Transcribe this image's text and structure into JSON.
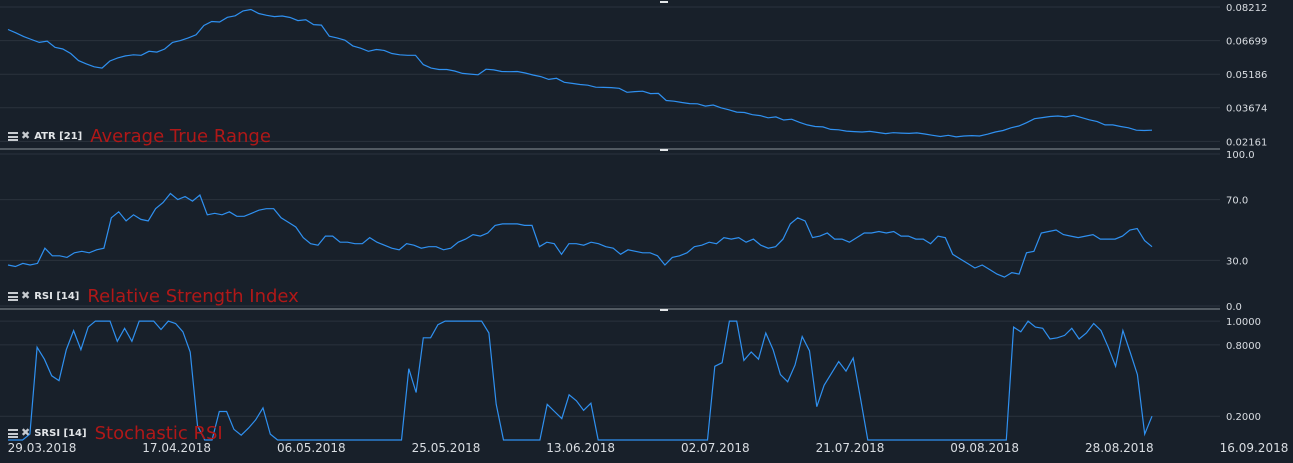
{
  "chart_data": [
    {
      "type": "line",
      "indicator": "ATR [21]",
      "name": "Average True Range",
      "ylim": [
        0.0195,
        0.0835
      ],
      "y_ticks": [
        "0.08212",
        "0.06699",
        "0.05186",
        "0.03674",
        "0.02161"
      ],
      "y_tick_values": [
        0.08212,
        0.06699,
        0.05186,
        0.03674,
        0.02161
      ],
      "values": [
        0.072,
        0.0705,
        0.0688,
        0.0675,
        0.0662,
        0.0668,
        0.064,
        0.0632,
        0.0612,
        0.058,
        0.0565,
        0.0552,
        0.0546,
        0.0578,
        0.0592,
        0.0601,
        0.0606,
        0.0604,
        0.0622,
        0.0618,
        0.0632,
        0.0662,
        0.067,
        0.0682,
        0.0696,
        0.0738,
        0.0756,
        0.0754,
        0.0775,
        0.0782,
        0.0804,
        0.081,
        0.0792,
        0.0784,
        0.0778,
        0.0781,
        0.0774,
        0.076,
        0.0764,
        0.0742,
        0.074,
        0.069,
        0.0682,
        0.0672,
        0.0646,
        0.0636,
        0.0622,
        0.063,
        0.0626,
        0.0612,
        0.0606,
        0.0604,
        0.0604,
        0.0562,
        0.0546,
        0.054,
        0.054,
        0.0533,
        0.0522,
        0.0519,
        0.0516,
        0.0541,
        0.0538,
        0.0531,
        0.053,
        0.0531,
        0.0524,
        0.0515,
        0.0508,
        0.0495,
        0.05,
        0.0482,
        0.0477,
        0.0472,
        0.0469,
        0.046,
        0.0459,
        0.0458,
        0.0455,
        0.0437,
        0.044,
        0.0442,
        0.0431,
        0.0432,
        0.04,
        0.0397,
        0.0391,
        0.0386,
        0.0385,
        0.0375,
        0.038,
        0.0367,
        0.0358,
        0.0348,
        0.0346,
        0.0336,
        0.0332,
        0.0322,
        0.0326,
        0.0312,
        0.0316,
        0.0302,
        0.029,
        0.0283,
        0.0281,
        0.027,
        0.0268,
        0.0262,
        0.026,
        0.0258,
        0.0261,
        0.0256,
        0.0251,
        0.0255,
        0.0253,
        0.0252,
        0.0254,
        0.0249,
        0.0243,
        0.0238,
        0.0243,
        0.0236,
        0.024,
        0.0242,
        0.024,
        0.0248,
        0.0258,
        0.0265,
        0.0277,
        0.0285,
        0.03,
        0.0318,
        0.0323,
        0.0328,
        0.033,
        0.0326,
        0.0333,
        0.0323,
        0.0313,
        0.0305,
        0.029,
        0.029,
        0.0283,
        0.0277,
        0.0266,
        0.0265,
        0.0266
      ]
    },
    {
      "type": "line",
      "indicator": "RSI [14]",
      "name": "Relative Strength Index",
      "ylim": [
        0,
        100
      ],
      "y_ticks": [
        "100.0",
        "70.0",
        "30.0",
        "0.0"
      ],
      "y_tick_values": [
        100,
        70,
        30,
        0
      ],
      "values": [
        27,
        26,
        28,
        27,
        28,
        38,
        33,
        33,
        32,
        35,
        36,
        35,
        37,
        38,
        58,
        62,
        56,
        60,
        57,
        56,
        64,
        68,
        74,
        70,
        72,
        69,
        73,
        60,
        61,
        60,
        62,
        59,
        59,
        61,
        63,
        64,
        64,
        58,
        55,
        52,
        45,
        41,
        40,
        46,
        46,
        42,
        42,
        41,
        41,
        45,
        42,
        40,
        38,
        37,
        41,
        40,
        38,
        39,
        39,
        37,
        38,
        42,
        44,
        47,
        46,
        48,
        53,
        54,
        54,
        54,
        53,
        53,
        39,
        42,
        41,
        34,
        41,
        41,
        40,
        42,
        41,
        39,
        38,
        34,
        37,
        36,
        35,
        35,
        33,
        27,
        32,
        33,
        35,
        39,
        40,
        42,
        41,
        45,
        44,
        45,
        42,
        44,
        40,
        38,
        39,
        44,
        54,
        58,
        56,
        45,
        46,
        48,
        44,
        44,
        42,
        45,
        48,
        48,
        49,
        48,
        49,
        46,
        46,
        44,
        44,
        41,
        46,
        45,
        34,
        31,
        28,
        25,
        27,
        24,
        21,
        19,
        22,
        21,
        35,
        36,
        48,
        49,
        50,
        47,
        46,
        45,
        46,
        47,
        44,
        44,
        44,
        46,
        50,
        51,
        43,
        39
      ]
    },
    {
      "type": "line",
      "indicator": "SRSI [14]",
      "name": "Stochastic RSI",
      "ylim": [
        0,
        1.06
      ],
      "y_ticks": [
        "1.0000",
        "0.8000",
        "0.2000"
      ],
      "y_tick_values": [
        1,
        0.8,
        0.2
      ],
      "values": [
        0.0,
        0.0,
        0.0,
        0.05,
        0.78,
        0.68,
        0.54,
        0.5,
        0.76,
        0.92,
        0.76,
        0.95,
        1.0,
        1.0,
        1.0,
        0.83,
        0.94,
        0.83,
        1.0,
        1.0,
        1.0,
        0.93,
        1.0,
        0.98,
        0.91,
        0.74,
        0.12,
        0.0,
        0.0,
        0.24,
        0.24,
        0.09,
        0.04,
        0.1,
        0.17,
        0.27,
        0.05,
        0.0,
        0.0,
        0.0,
        0.0,
        0.0,
        0.0,
        0.0,
        0.0,
        0.0,
        0.0,
        0.0,
        0.0,
        0.0,
        0.0,
        0.0,
        0.0,
        0.0,
        0.0,
        0.6,
        0.4,
        0.86,
        0.86,
        0.97,
        1.0,
        1.0,
        1.0,
        1.0,
        1.0,
        1.0,
        0.9,
        0.3,
        0.0,
        0.0,
        0.0,
        0.0,
        0.0,
        0.0,
        0.3,
        0.24,
        0.18,
        0.38,
        0.33,
        0.25,
        0.31,
        0.0,
        0.0,
        0.0,
        0.0,
        0.0,
        0.0,
        0.0,
        0.0,
        0.0,
        0.0,
        0.0,
        0.0,
        0.0,
        0.0,
        0.0,
        0.0,
        0.62,
        0.65,
        1.0,
        1.0,
        0.67,
        0.74,
        0.68,
        0.9,
        0.76,
        0.55,
        0.49,
        0.63,
        0.87,
        0.75,
        0.28,
        0.46,
        0.56,
        0.66,
        0.58,
        0.69,
        0.35,
        0.0,
        0.0,
        0.0,
        0.0,
        0.0,
        0.0,
        0.0,
        0.0,
        0.0,
        0.0,
        0.0,
        0.0,
        0.0,
        0.0,
        0.0,
        0.0,
        0.0,
        0.0,
        0.0,
        0.0,
        0.95,
        0.91,
        1.0,
        0.95,
        0.94,
        0.85,
        0.86,
        0.88,
        0.94,
        0.85,
        0.9,
        0.98,
        0.92,
        0.78,
        0.62,
        0.92,
        0.74,
        0.55,
        0.05,
        0.2
      ]
    }
  ],
  "x_axis": {
    "labels": [
      "29.03.2018",
      "17.04.2018",
      "06.05.2018",
      "25.05.2018",
      "13.06.2018",
      "02.07.2018",
      "21.07.2018",
      "09.08.2018",
      "28.08.2018",
      "16.09.2018"
    ]
  },
  "colors": {
    "background": "#18202a",
    "line": "#2f90f0",
    "title": "#b01818"
  },
  "icons": [
    "list-icon",
    "close-icon"
  ]
}
